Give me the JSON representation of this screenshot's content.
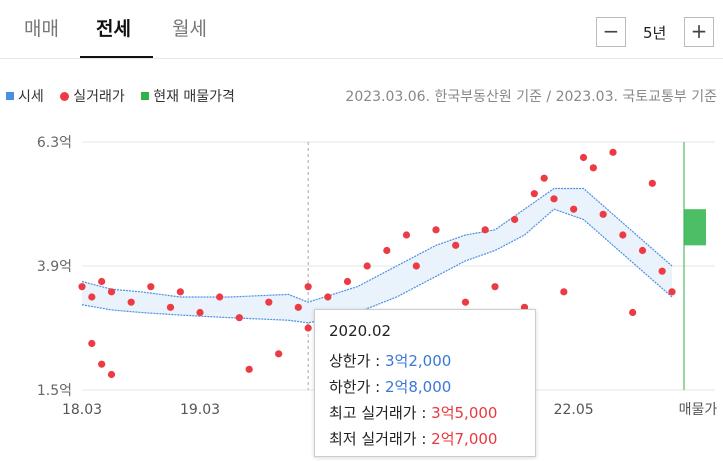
{
  "tabs": [
    {
      "label": "매매",
      "active": false
    },
    {
      "label": "전세",
      "active": true
    },
    {
      "label": "월세",
      "active": false
    }
  ],
  "period": {
    "minus": "−",
    "value": "5년",
    "plus": "+"
  },
  "legend": {
    "market_price": "시세",
    "actual_trade": "실거래가",
    "current_listing": "현재 매물가격"
  },
  "source_text": "2023.03.06. 한국부동산원 기준 / 2023.03. 국토교통부 기준",
  "colors": {
    "market": "#4a90e2",
    "actual": "#ec3b45",
    "listing": "#2db34a",
    "band_fill": "#eaf3fc"
  },
  "tooltip": {
    "date": "2020.02",
    "upper_label": "상한가 : ",
    "upper_value": "3억2,000",
    "lower_label": "하한가 : ",
    "lower_value": "2억8,000",
    "high_label": "최고 실거래가 : ",
    "high_value": "3억5,000",
    "low_label": "최저 실거래가 : ",
    "low_value": "2억7,000"
  },
  "chart_data": {
    "type": "line",
    "y_unit": "억",
    "ylim": [
      1.5,
      6.3
    ],
    "y_ticks": [
      "6.3억",
      "3.9억",
      "1.5억"
    ],
    "x_ticks": [
      "18.03",
      "19.03",
      "22.05",
      "매물가"
    ],
    "xlim": [
      "2018.03",
      "2023.03"
    ],
    "series": [
      {
        "name": "시세",
        "x": [
          "2018.03",
          "2018.06",
          "2018.09",
          "2019.01",
          "2019.06",
          "2019.12",
          "2020.02",
          "2020.07",
          "2020.11",
          "2021.03",
          "2021.06",
          "2021.09",
          "2021.12",
          "2022.03",
          "2022.06",
          "2022.09",
          "2022.12",
          "2023.03"
        ],
        "upper": [
          3.6,
          3.45,
          3.4,
          3.3,
          3.3,
          3.35,
          3.2,
          3.5,
          3.9,
          4.3,
          4.5,
          4.6,
          5.0,
          5.4,
          5.4,
          4.9,
          4.4,
          3.9
        ],
        "lower": [
          3.15,
          3.05,
          3.0,
          2.95,
          2.9,
          2.85,
          2.8,
          3.0,
          3.3,
          3.7,
          4.0,
          4.2,
          4.5,
          5.0,
          4.8,
          4.3,
          3.8,
          3.3
        ]
      },
      {
        "name": "실거래가",
        "points": [
          [
            "2018.03",
            3.5
          ],
          [
            "2018.04",
            3.3
          ],
          [
            "2018.05",
            3.6
          ],
          [
            "2018.04",
            2.4
          ],
          [
            "2018.05",
            2.0
          ],
          [
            "2018.06",
            1.8
          ],
          [
            "2018.06",
            3.4
          ],
          [
            "2018.08",
            3.2
          ],
          [
            "2018.10",
            3.5
          ],
          [
            "2018.12",
            3.1
          ],
          [
            "2019.01",
            3.4
          ],
          [
            "2019.03",
            3.0
          ],
          [
            "2019.05",
            3.3
          ],
          [
            "2019.07",
            2.9
          ],
          [
            "2019.08",
            1.9
          ],
          [
            "2019.10",
            3.2
          ],
          [
            "2019.11",
            2.2
          ],
          [
            "2020.01",
            3.1
          ],
          [
            "2020.02",
            3.5
          ],
          [
            "2020.02",
            2.7
          ],
          [
            "2020.04",
            3.3
          ],
          [
            "2020.06",
            3.6
          ],
          [
            "2020.08",
            3.9
          ],
          [
            "2020.10",
            4.2
          ],
          [
            "2020.12",
            4.5
          ],
          [
            "2021.01",
            3.9
          ],
          [
            "2021.03",
            4.6
          ],
          [
            "2021.05",
            4.3
          ],
          [
            "2021.06",
            3.2
          ],
          [
            "2021.08",
            4.6
          ],
          [
            "2021.09",
            3.5
          ],
          [
            "2021.11",
            4.8
          ],
          [
            "2021.12",
            3.1
          ],
          [
            "2022.01",
            5.3
          ],
          [
            "2022.02",
            5.6
          ],
          [
            "2022.03",
            5.2
          ],
          [
            "2022.04",
            3.4
          ],
          [
            "2022.05",
            5.0
          ],
          [
            "2022.06",
            6.0
          ],
          [
            "2022.07",
            5.8
          ],
          [
            "2022.08",
            4.9
          ],
          [
            "2022.09",
            6.1
          ],
          [
            "2022.10",
            4.5
          ],
          [
            "2022.11",
            3.0
          ],
          [
            "2022.12",
            4.2
          ],
          [
            "2023.01",
            5.5
          ],
          [
            "2023.02",
            3.8
          ],
          [
            "2023.03",
            3.4
          ]
        ]
      }
    ],
    "listing_range": [
      4.3,
      5.0
    ]
  }
}
